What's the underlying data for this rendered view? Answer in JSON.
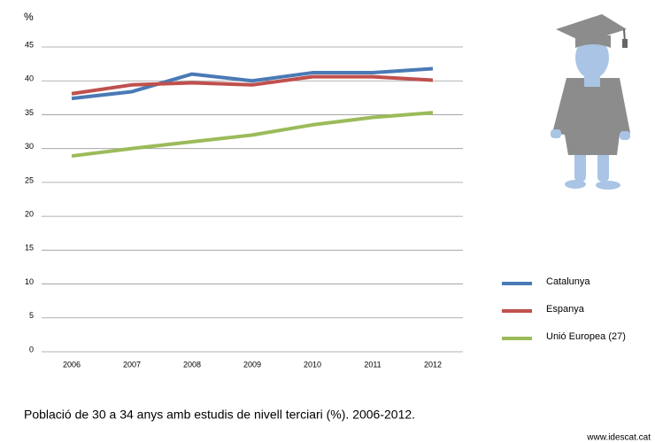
{
  "chart_data": {
    "type": "line",
    "y_label": "%",
    "caption": "Població de 30 a 34 anys amb estudis de nivell terciari (%). 2006-2012.",
    "source": "www.idescat.cat",
    "categories": [
      "2006",
      "2007",
      "2008",
      "2009",
      "2010",
      "2011",
      "2012"
    ],
    "series": [
      {
        "name": "Catalunya",
        "color": "#4a7ab5",
        "values": [
          37.4,
          38.4,
          41.0,
          40.0,
          41.2,
          41.2,
          41.8
        ]
      },
      {
        "name": "Espanya",
        "color": "#c0504d",
        "values": [
          38.1,
          39.4,
          39.7,
          39.4,
          40.6,
          40.6,
          40.1
        ]
      },
      {
        "name": "Unió Europea (27)",
        "color": "#9bbb59",
        "values": [
          28.9,
          30.0,
          31.0,
          32.0,
          33.5,
          34.6,
          35.3
        ]
      }
    ],
    "ylim": [
      0,
      45
    ],
    "yticks": [
      0,
      5,
      10,
      15,
      20,
      25,
      30,
      35,
      40,
      45
    ],
    "grid": true,
    "legend": "right"
  }
}
